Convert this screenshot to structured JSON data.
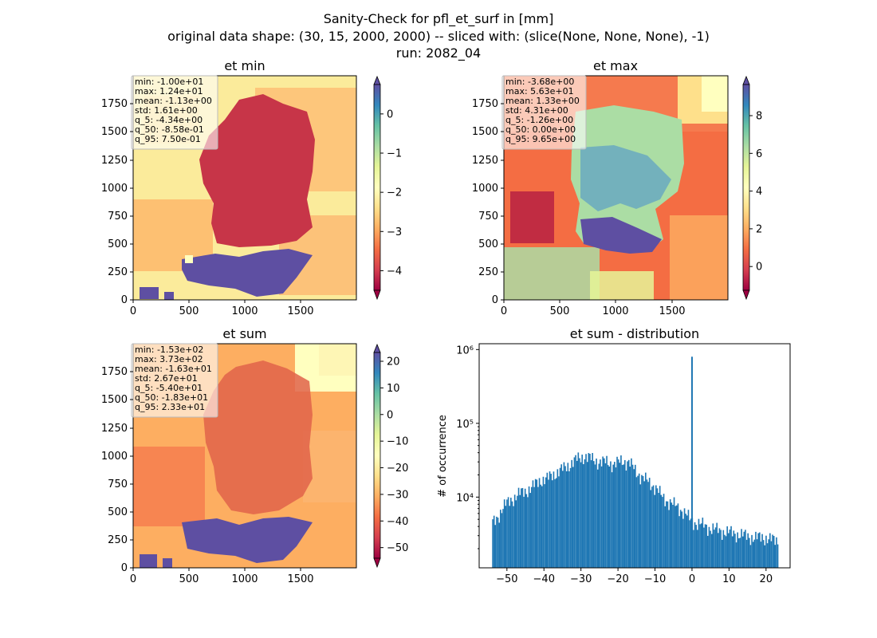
{
  "figure": {
    "title_lines": [
      "Sanity-Check for pfl_et_surf in [mm]",
      "original data shape: (30, 15, 2000, 2000) -- sliced with: (slice(None, None, None), -1)",
      "run: 2082_04"
    ]
  },
  "colormap": "Spectral",
  "panels": [
    {
      "title": "et min",
      "stats": [
        "min: -1.00e+01",
        "max: 1.24e+01",
        "mean: -1.13e+00",
        "std: 1.61e+00",
        "q_5: -4.34e+00",
        "q_50: -8.58e-01",
        "q_95: 7.50e-01"
      ],
      "x_ticks": [
        "0",
        "500",
        "1000",
        "1500"
      ],
      "y_ticks": [
        "0",
        "250",
        "500",
        "750",
        "1000",
        "1250",
        "1500",
        "1750"
      ],
      "cbar": {
        "vmin": -4.5,
        "vmax": 0.75,
        "ticks": [
          "0",
          "−1",
          "−2",
          "−3",
          "−4"
        ],
        "tick_values": [
          0,
          -1,
          -2,
          -3,
          -4
        ]
      }
    },
    {
      "title": "et max",
      "stats": [
        "min: -3.68e+00",
        "max: 5.63e+01",
        "mean: 1.33e+00",
        "std: 4.31e+00",
        "q_5: -1.26e+00",
        "q_50: 0.00e+00",
        "q_95: 9.65e+00"
      ],
      "x_ticks": [
        "0",
        "500",
        "1000",
        "1500"
      ],
      "y_ticks": [
        "0",
        "250",
        "500",
        "750",
        "1000",
        "1250",
        "1500",
        "1750"
      ],
      "cbar": {
        "vmin": -1.26,
        "vmax": 9.65,
        "ticks": [
          "8",
          "6",
          "4",
          "2",
          "0"
        ],
        "tick_values": [
          8,
          6,
          4,
          2,
          0
        ]
      }
    },
    {
      "title": "et sum",
      "stats": [
        "min: -1.53e+02",
        "max: 3.73e+02",
        "mean: -1.63e+01",
        "std: 2.67e+01",
        "q_5: -5.40e+01",
        "q_50: -1.83e+01",
        "q_95: 2.33e+01"
      ],
      "x_ticks": [
        "0",
        "500",
        "1000",
        "1500"
      ],
      "y_ticks": [
        "0",
        "250",
        "500",
        "750",
        "1000",
        "1250",
        "1500",
        "1750"
      ],
      "cbar": {
        "vmin": -54,
        "vmax": 23.3,
        "ticks": [
          "20",
          "10",
          "0",
          "−10",
          "−20",
          "−30",
          "−40",
          "−50"
        ],
        "tick_values": [
          20,
          10,
          0,
          -10,
          -20,
          -30,
          -40,
          -50
        ]
      }
    }
  ],
  "chart_data": [
    {
      "type": "heatmap",
      "title": "et min",
      "x_range": [
        0,
        2000
      ],
      "y_range": [
        0,
        2000
      ],
      "color_range": [
        -4.5,
        0.75
      ],
      "colorbar_ticks": [
        0,
        -1,
        -2,
        -3,
        -4
      ]
    },
    {
      "type": "heatmap",
      "title": "et max",
      "x_range": [
        0,
        2000
      ],
      "y_range": [
        0,
        2000
      ],
      "color_range": [
        -1.26,
        9.65
      ],
      "colorbar_ticks": [
        8,
        6,
        4,
        2,
        0
      ]
    },
    {
      "type": "heatmap",
      "title": "et sum",
      "x_range": [
        0,
        2000
      ],
      "y_range": [
        0,
        2000
      ],
      "color_range": [
        -54,
        23.3
      ],
      "colorbar_ticks": [
        20,
        10,
        0,
        -10,
        -20,
        -30,
        -40,
        -50
      ]
    },
    {
      "type": "bar",
      "title": "et sum - distribution",
      "xlabel": "",
      "ylabel": "# of occurrence",
      "y_scale": "log",
      "xlim": [
        -57.5,
        26.5
      ],
      "ylim": [
        1100,
        1200000
      ],
      "x_ticks": [
        -50,
        -40,
        -30,
        -20,
        -10,
        0,
        10,
        20
      ],
      "x_tick_labels": [
        "−50",
        "−40",
        "−30",
        "−20",
        "−10",
        "0",
        "10",
        "20"
      ],
      "y_tick_labels": [
        "10⁴",
        "10⁵",
        "10⁶"
      ],
      "y_tick_values": [
        10000,
        100000,
        1000000
      ],
      "color": "#1f77b4",
      "bin_start": -54,
      "bin_width": 0.35,
      "anchors": [
        [
          -54,
          4500
        ],
        [
          -53,
          4800
        ],
        [
          -52,
          6000
        ],
        [
          -51,
          7500
        ],
        [
          -49,
          9000
        ],
        [
          -47,
          11000
        ],
        [
          -45,
          12000
        ],
        [
          -43,
          14000
        ],
        [
          -41,
          17000
        ],
        [
          -39,
          18000
        ],
        [
          -37,
          21000
        ],
        [
          -35,
          24000
        ],
        [
          -33,
          28000
        ],
        [
          -31,
          33000
        ],
        [
          -29,
          36000
        ],
        [
          -27,
          33000
        ],
        [
          -25,
          30000
        ],
        [
          -23,
          30000
        ],
        [
          -21,
          28000
        ],
        [
          -19,
          31000
        ],
        [
          -17,
          30000
        ],
        [
          -15,
          22000
        ],
        [
          -13,
          18000
        ],
        [
          -11,
          15000
        ],
        [
          -10,
          14000
        ],
        [
          -9,
          12000
        ],
        [
          -8,
          10000
        ],
        [
          -6,
          8500
        ],
        [
          -4,
          7500
        ],
        [
          -2,
          6200
        ],
        [
          -0.5,
          5000
        ],
        [
          1,
          4500
        ],
        [
          3,
          4200
        ],
        [
          5,
          3800
        ],
        [
          7,
          3600
        ],
        [
          9,
          3400
        ],
        [
          11,
          3300
        ],
        [
          13,
          3100
        ],
        [
          15,
          3000
        ],
        [
          17,
          2800
        ],
        [
          19,
          2900
        ],
        [
          21,
          2700
        ],
        [
          23,
          2600
        ]
      ],
      "spike": {
        "x": 0,
        "value": 800000
      }
    }
  ]
}
